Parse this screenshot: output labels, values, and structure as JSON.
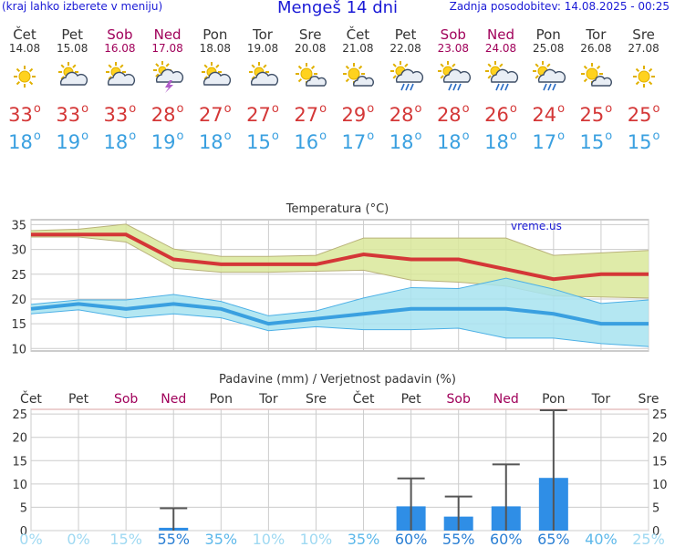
{
  "header": {
    "left_note": "(kraj lahko izberete v meniju)",
    "title": "Mengeš 14 dni",
    "updated": "Zadnja posodobitev: 14.08.2025 - 00:25"
  },
  "days": [
    {
      "day": "Čet",
      "date": "14.08",
      "weekend": false,
      "icon": "sun-icon",
      "tmax": "33",
      "tmin": "18"
    },
    {
      "day": "Pet",
      "date": "15.08",
      "weekend": false,
      "icon": "partly-cloudy-icon",
      "tmax": "33",
      "tmin": "19"
    },
    {
      "day": "Sob",
      "date": "16.08",
      "weekend": true,
      "icon": "partly-cloudy-icon",
      "tmax": "33",
      "tmin": "18"
    },
    {
      "day": "Ned",
      "date": "17.08",
      "weekend": true,
      "icon": "thunderstorm-icon",
      "tmax": "28",
      "tmin": "19"
    },
    {
      "day": "Pon",
      "date": "18.08",
      "weekend": false,
      "icon": "partly-cloudy-icon",
      "tmax": "27",
      "tmin": "18"
    },
    {
      "day": "Tor",
      "date": "19.08",
      "weekend": false,
      "icon": "partly-cloudy-icon",
      "tmax": "27",
      "tmin": "15"
    },
    {
      "day": "Sre",
      "date": "20.08",
      "weekend": false,
      "icon": "mostly-sunny-icon",
      "tmax": "27",
      "tmin": "16"
    },
    {
      "day": "Čet",
      "date": "21.08",
      "weekend": false,
      "icon": "mostly-sunny-icon",
      "tmax": "29",
      "tmin": "17"
    },
    {
      "day": "Pet",
      "date": "22.08",
      "weekend": false,
      "icon": "sun-rain-icon",
      "tmax": "28",
      "tmin": "18"
    },
    {
      "day": "Sob",
      "date": "23.08",
      "weekend": true,
      "icon": "sun-rain-icon",
      "tmax": "28",
      "tmin": "18"
    },
    {
      "day": "Ned",
      "date": "24.08",
      "weekend": true,
      "icon": "sun-rain-icon",
      "tmax": "26",
      "tmin": "18"
    },
    {
      "day": "Pon",
      "date": "25.08",
      "weekend": false,
      "icon": "sun-rain-icon",
      "tmax": "24",
      "tmin": "17"
    },
    {
      "day": "Tor",
      "date": "26.08",
      "weekend": false,
      "icon": "mostly-sunny-icon",
      "tmax": "25",
      "tmin": "15"
    },
    {
      "day": "Sre",
      "date": "27.08",
      "weekend": false,
      "icon": "sun-icon",
      "tmax": "25",
      "tmin": "15"
    }
  ],
  "colors": {
    "max": "#d43737",
    "min": "#3aa0e0",
    "max_band": "#d9e89a",
    "min_band": "#a7e3f0",
    "weekend": "#a0005a",
    "bar": "#2f8ee6",
    "grid": "#cccccc"
  },
  "chart_data": [
    {
      "type": "line",
      "title": "Temperatura (°C)",
      "watermark": "vreme.us",
      "ylim": [
        9.5,
        36
      ],
      "yticks": [
        10,
        15,
        20,
        25,
        30,
        35
      ],
      "x": [
        "14.08",
        "15.08",
        "16.08",
        "17.08",
        "18.08",
        "19.08",
        "20.08",
        "21.08",
        "22.08",
        "23.08",
        "24.08",
        "25.08",
        "26.08",
        "27.08"
      ],
      "series": [
        {
          "name": "max",
          "values": [
            33,
            33,
            33,
            28,
            27,
            27,
            27,
            29,
            28,
            28,
            26,
            24,
            25,
            25
          ],
          "low": [
            32.5,
            32.5,
            31.5,
            26.2,
            25.4,
            25.4,
            25.6,
            25.8,
            23.8,
            23.4,
            22.6,
            20.6,
            20.4,
            20.2
          ],
          "high": [
            33.8,
            34.1,
            35.1,
            30.1,
            28.6,
            28.6,
            28.8,
            32.3,
            32.3,
            32.3,
            32.3,
            28.8,
            29.3,
            29.8
          ]
        },
        {
          "name": "min",
          "values": [
            18,
            19,
            18,
            19,
            18,
            15,
            16,
            17,
            18,
            18,
            18,
            17,
            15,
            15
          ],
          "low": [
            17.0,
            17.8,
            16.2,
            17.0,
            16.2,
            13.6,
            14.4,
            13.8,
            13.8,
            14.1,
            12.1,
            12.1,
            11.0,
            10.4
          ],
          "high": [
            18.9,
            19.8,
            19.8,
            20.9,
            19.5,
            16.6,
            17.6,
            20.2,
            22.3,
            22.1,
            24.2,
            22.0,
            19.1,
            19.8
          ]
        }
      ]
    },
    {
      "type": "bar",
      "title": "Padavine (mm) / Verjetnost padavin (%)",
      "ylim": [
        0,
        26
      ],
      "yticks": [
        0,
        5,
        10,
        15,
        20,
        25
      ],
      "categories": [
        "Čet",
        "Pet",
        "Sob",
        "Ned",
        "Pon",
        "Tor",
        "Sre",
        "Čet",
        "Pet",
        "Sob",
        "Ned",
        "Pon",
        "Tor",
        "Sre"
      ],
      "weekend": [
        false,
        false,
        true,
        true,
        false,
        false,
        false,
        false,
        false,
        true,
        true,
        false,
        false,
        false
      ],
      "values": [
        0,
        0,
        0,
        0.6,
        0,
        0,
        0,
        0,
        5.2,
        3.0,
        5.2,
        11.3,
        0,
        0
      ],
      "error_high": [
        0,
        0,
        0,
        4.8,
        0,
        0,
        0,
        0,
        11.2,
        7.3,
        14.2,
        25.8,
        0,
        0
      ],
      "probability": [
        "0%",
        "0%",
        "15%",
        "55%",
        "35%",
        "10%",
        "10%",
        "35%",
        "60%",
        "55%",
        "60%",
        "65%",
        "40%",
        "25%"
      ],
      "probability_values": [
        0,
        0,
        15,
        55,
        35,
        10,
        10,
        35,
        60,
        55,
        60,
        65,
        40,
        25
      ]
    }
  ]
}
